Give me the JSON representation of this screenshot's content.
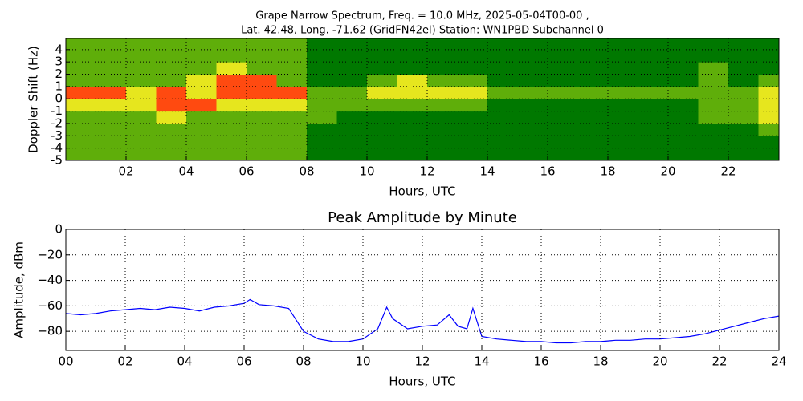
{
  "chart_data": [
    {
      "type": "heatmap",
      "title": [
        "Grape Narrow Spectrum, Freq. = 10.0 MHz, 2025-05-04T00-00 ,",
        "Lat.  42.48, Long. -71.62 (GridFN42el) Station: WN1PBD Subchannel 0"
      ],
      "x_label": "Hours, UTC",
      "y_label": "Doppler Shift (Hz)",
      "xlim": [
        0,
        23.68
      ],
      "ylim": [
        -5,
        4.9
      ],
      "xticks": [
        {
          "value": 2,
          "label": "02"
        },
        {
          "value": 4,
          "label": "04"
        },
        {
          "value": 6,
          "label": "06"
        },
        {
          "value": 8,
          "label": "08"
        },
        10,
        12,
        14,
        16,
        18,
        20,
        22
      ],
      "yticks": [
        -5,
        -4,
        -3,
        -2,
        -1,
        0,
        1,
        2,
        3,
        4
      ],
      "grid": true,
      "colors": [
        "#007800",
        "#5fae0a",
        "#e6e61e",
        "#ff4a10"
      ],
      "xbins": [
        0,
        1,
        2,
        3,
        4,
        5,
        6,
        7,
        8,
        9,
        10,
        11,
        12,
        13,
        14,
        15,
        16,
        17,
        18,
        19,
        20,
        21,
        22,
        23,
        23.68
      ],
      "ybins": [
        -5,
        -4,
        -3,
        -2,
        -1,
        0,
        1,
        2,
        3,
        4,
        4.9
      ],
      "z": [
        [
          1,
          1,
          1,
          1,
          1,
          1,
          1,
          1,
          0,
          0,
          0,
          0,
          0,
          0,
          0,
          0,
          0,
          0,
          0,
          0,
          0,
          0,
          0,
          0
        ],
        [
          1,
          1,
          1,
          1,
          1,
          1,
          1,
          1,
          0,
          0,
          0,
          0,
          0,
          0,
          0,
          0,
          0,
          0,
          0,
          0,
          0,
          0,
          0,
          0
        ],
        [
          1,
          1,
          1,
          1,
          1,
          1,
          1,
          1,
          0,
          0,
          0,
          0,
          0,
          0,
          0,
          0,
          0,
          0,
          0,
          0,
          0,
          0,
          0,
          1
        ],
        [
          1,
          1,
          1,
          2,
          1,
          1,
          1,
          1,
          1,
          0,
          0,
          0,
          0,
          0,
          0,
          0,
          0,
          0,
          0,
          0,
          0,
          1,
          1,
          2
        ],
        [
          2,
          2,
          2,
          3,
          3,
          2,
          2,
          2,
          1,
          1,
          1,
          1,
          1,
          1,
          0,
          0,
          0,
          0,
          0,
          0,
          0,
          1,
          1,
          2
        ],
        [
          3,
          3,
          2,
          3,
          2,
          3,
          3,
          3,
          1,
          1,
          2,
          2,
          2,
          2,
          1,
          1,
          1,
          1,
          1,
          1,
          1,
          1,
          1,
          2
        ],
        [
          1,
          1,
          1,
          1,
          2,
          3,
          3,
          1,
          0,
          0,
          1,
          2,
          1,
          1,
          0,
          0,
          0,
          0,
          0,
          0,
          0,
          1,
          0,
          1
        ],
        [
          1,
          1,
          1,
          1,
          1,
          2,
          1,
          1,
          0,
          0,
          0,
          0,
          0,
          0,
          0,
          0,
          0,
          0,
          0,
          0,
          0,
          1,
          0,
          0
        ],
        [
          1,
          1,
          1,
          1,
          1,
          1,
          1,
          1,
          0,
          0,
          0,
          0,
          0,
          0,
          0,
          0,
          0,
          0,
          0,
          0,
          0,
          0,
          0,
          0
        ],
        [
          1,
          1,
          1,
          1,
          1,
          1,
          1,
          1,
          0,
          0,
          0,
          0,
          0,
          0,
          0,
          0,
          0,
          0,
          0,
          0,
          0,
          0,
          0,
          0
        ]
      ]
    },
    {
      "type": "line",
      "title": "Peak Amplitude by Minute",
      "x_label": "Hours, UTC",
      "y_label": "Amplitude, dBm",
      "xlim": [
        0,
        24
      ],
      "ylim": [
        -95,
        0
      ],
      "xticks": [
        {
          "value": 0,
          "label": "00"
        },
        {
          "value": 2,
          "label": "02"
        },
        {
          "value": 4,
          "label": "04"
        },
        {
          "value": 6,
          "label": "06"
        },
        {
          "value": 8,
          "label": "08"
        },
        10,
        12,
        14,
        16,
        18,
        20,
        22,
        24
      ],
      "yticks": [
        0,
        {
          "value": -20,
          "label": "−20"
        },
        {
          "value": -40,
          "label": "−40"
        },
        {
          "value": -60,
          "label": "−60"
        },
        {
          "value": -80,
          "label": "−80"
        }
      ],
      "grid": true,
      "color": "#0000ff",
      "x": [
        0,
        0.5,
        1,
        1.5,
        2,
        2.5,
        3,
        3.5,
        4,
        4.5,
        5,
        5.5,
        6,
        6.2,
        6.5,
        7,
        7.5,
        8,
        8.5,
        9,
        9.5,
        10,
        10.5,
        10.8,
        11,
        11.5,
        12,
        12.5,
        12.9,
        13.2,
        13.5,
        13.7,
        14,
        14.5,
        15,
        15.5,
        16,
        16.5,
        17,
        17.5,
        18,
        18.5,
        19,
        19.5,
        20,
        20.5,
        21,
        21.5,
        22,
        22.5,
        23,
        23.5,
        24
      ],
      "values": [
        -66,
        -67,
        -66,
        -64,
        -63,
        -62,
        -63,
        -61,
        -62,
        -64,
        -61,
        -60,
        -58,
        -55,
        -59,
        -60,
        -62,
        -80,
        -86,
        -88,
        -88,
        -86,
        -78,
        -61,
        -70,
        -78,
        -76,
        -75,
        -67,
        -76,
        -78,
        -62,
        -84,
        -86,
        -87,
        -88,
        -88,
        -89,
        -89,
        -88,
        -88,
        -87,
        -87,
        -86,
        -86,
        -85,
        -84,
        -82,
        -79,
        -76,
        -73,
        -70,
        -68
      ]
    }
  ]
}
